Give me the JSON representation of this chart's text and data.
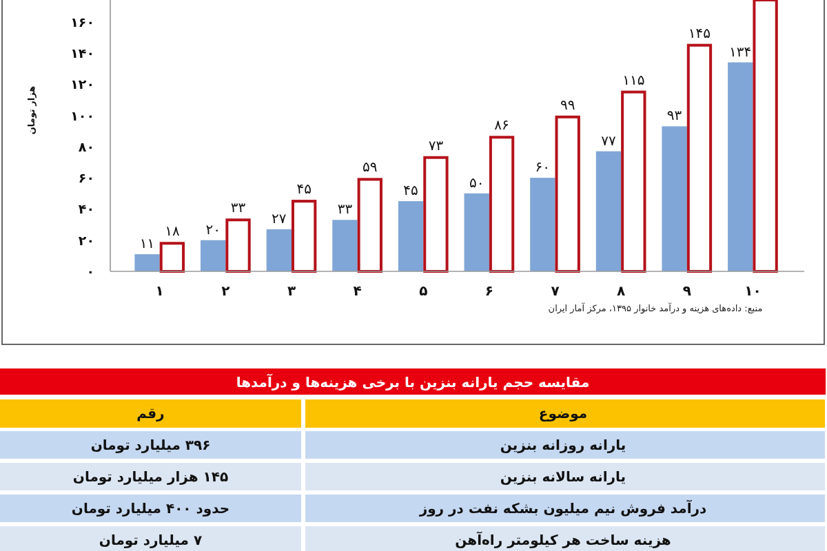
{
  "chart_data": [
    {
      "type": "bar",
      "categories": [
        "۱",
        "۲",
        "۳",
        "۴",
        "۵",
        "۶",
        "۷",
        "۸",
        "۹",
        "۱۰"
      ],
      "series": [
        {
          "color": "#7fa6d6",
          "values": [
            11,
            20,
            27,
            33,
            45,
            50,
            60,
            77,
            93,
            134
          ],
          "value_labels": [
            "۱۱",
            "۲۰",
            "۲۷",
            "۳۳",
            "۴۵",
            "۵۰",
            "۶۰",
            "۷۷",
            "۹۳",
            "۱۳۴"
          ]
        },
        {
          "color": "#b5121b",
          "values": [
            18,
            33,
            45,
            59,
            73,
            86,
            99,
            115,
            145,
            174
          ],
          "value_labels": [
            "۱۸",
            "۳۳",
            "۴۵",
            "۵۹",
            "۷۳",
            "۸۶",
            "۹۹",
            "۱۱۵",
            "۱۴۵",
            null
          ]
        }
      ],
      "ylabel": "هزار تومان",
      "ylim": [
        0,
        174
      ],
      "yticks": [
        {
          "value": 0,
          "label": "۰"
        },
        {
          "value": 20,
          "label": "۲۰"
        },
        {
          "value": 40,
          "label": "۴۰"
        },
        {
          "value": 60,
          "label": "۶۰"
        },
        {
          "value": 80,
          "label": "۸۰"
        },
        {
          "value": 100,
          "label": "۱۰۰"
        },
        {
          "value": 120,
          "label": "۱۲۰"
        },
        {
          "value": 140,
          "label": "۱۴۰"
        },
        {
          "value": 160,
          "label": "۱۶۰"
        }
      ],
      "annotations": [
        "منبع: داده‌های هزینه و درآمد خانوار ۱۳۹۵، مرکز آمار ایران"
      ]
    },
    {
      "type": "other",
      "title": "مقایسه حجم یارانه بنزین با برخی هزینه‌ها و درآمدها",
      "annotations": [
        "موضوع",
        "رقم",
        "یارانه روزانه بنزین",
        "۳۹۶ میلیارد تومان",
        "یارانه سالانه بنزین",
        "۱۴۵ هزار میلیارد تومان",
        "درآمد فروش نیم میلیون بشکه نفت در روز",
        "حدود ۴۰۰ میلیارد تومان",
        "هزینه ساخت هر کیلومتر راه‌آهن",
        "۷ میلیارد تومان"
      ]
    }
  ]
}
